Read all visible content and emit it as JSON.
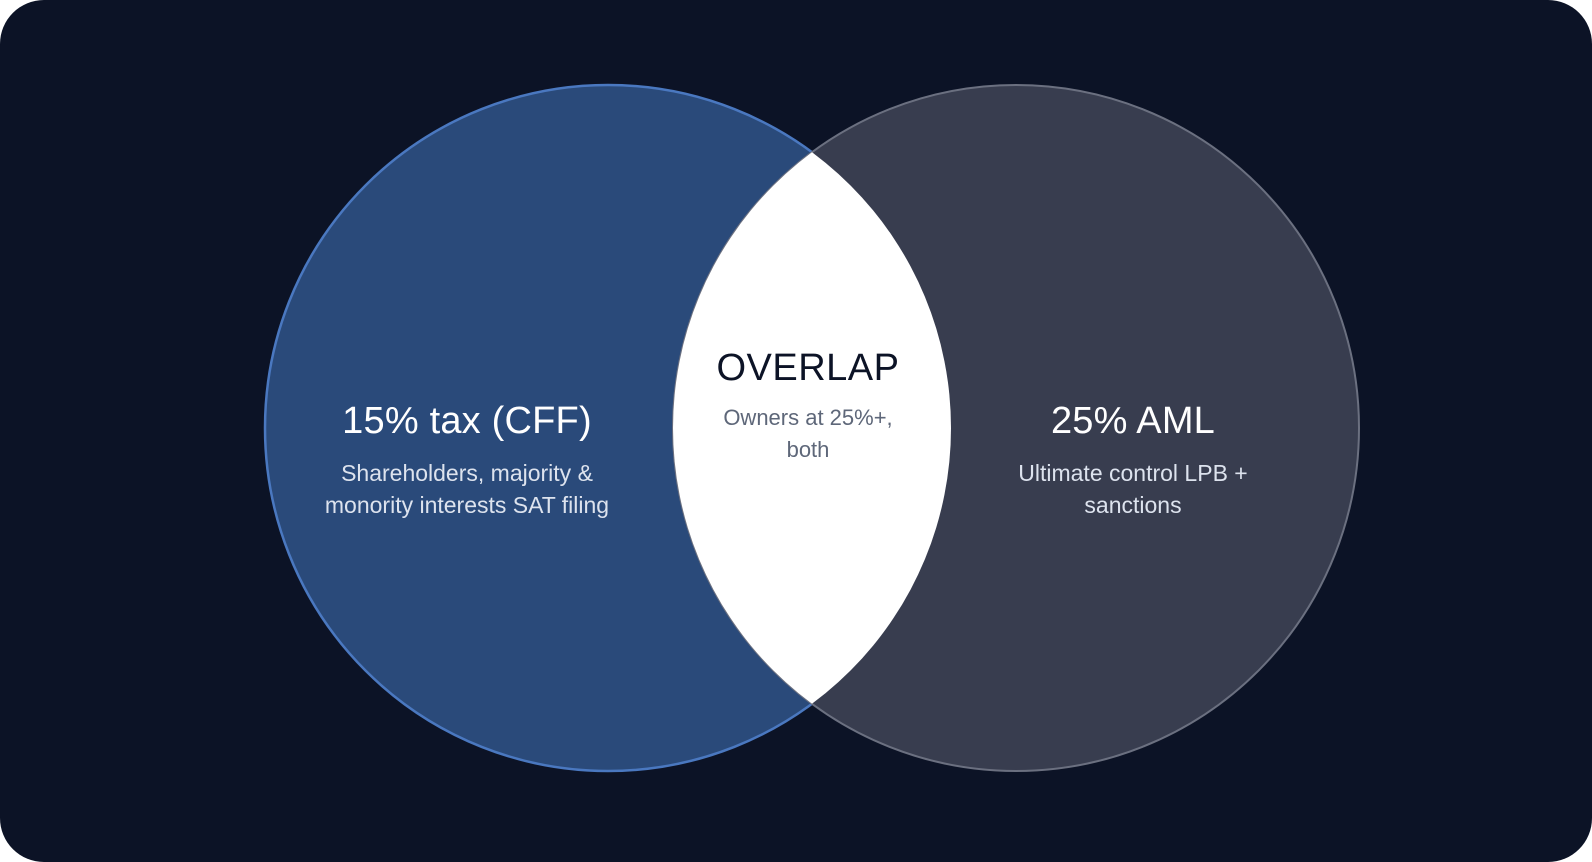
{
  "diagram": {
    "type": "venn",
    "colors": {
      "background": "#0c1326",
      "left_fill": "#2a4a7a",
      "left_stroke": "#4a78c0",
      "right_fill": "#383d4f",
      "right_stroke": "#6b7080",
      "overlap_fill": "#ffffff"
    },
    "left": {
      "title": "15% tax (CFF)",
      "description": "Shareholders, majority & monority interests SAT filing"
    },
    "right": {
      "title": "25% AML",
      "description": "Ultimate control LPB + sanctions"
    },
    "overlap": {
      "title": "OVERLAP",
      "description": "Owners at 25%+, both"
    }
  }
}
